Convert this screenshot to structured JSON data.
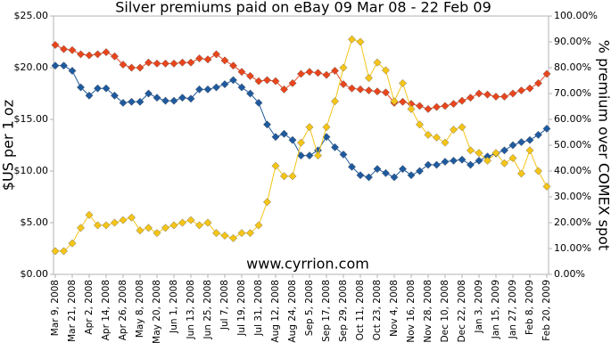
{
  "chart_data": {
    "type": "line",
    "title": "Silver premiums paid on eBay 09 Mar 08 - 22 Feb 09",
    "y_label": "$US per 1 oz",
    "y2_label": "% premium over COMEX spot",
    "annotation": "www.cyrrion.com",
    "categories": [
      "Mar 9, 2008",
      null,
      "Mar 21, 2008",
      null,
      "Apr 2, 2008",
      null,
      "Apr 14, 2008",
      null,
      "Apr 26, 2008",
      null,
      "May 8, 2008",
      null,
      "May 20, 2008",
      null,
      "Jun 1, 2008",
      null,
      "Jun 13, 2008",
      null,
      "Jun 25, 2008",
      null,
      "Jul 7, 2008",
      null,
      "Jul 19, 2008",
      null,
      "Jul 31, 2008",
      null,
      "Aug 12, 2008",
      null,
      "Aug 24, 2008",
      null,
      "Sep 5, 2008",
      null,
      "Sep 17, 2008",
      null,
      "Sep 29, 2008",
      null,
      "Oct 11, 2008",
      null,
      "Oct 23, 2008",
      null,
      "Nov 4, 2008",
      null,
      "Nov 16, 2008",
      null,
      "Nov 28, 2008",
      null,
      "Dec 10, 2008",
      null,
      "Dec 22, 2008",
      null,
      "Jan 3, 2009",
      null,
      "Jan 15, 2009",
      null,
      "Jan 27, 2009",
      null,
      "Feb 8, 2009",
      null,
      "Feb 20, 2009"
    ],
    "series": [
      {
        "color": "#e8451c",
        "values": [
          22.2,
          21.8,
          21.7,
          21.3,
          21.2,
          21.3,
          21.5,
          21.1,
          20.3,
          20.0,
          20.0,
          20.5,
          20.4,
          20.4,
          20.4,
          20.5,
          20.5,
          20.9,
          20.8,
          21.3,
          20.7,
          20.2,
          19.6,
          19.2,
          18.7,
          18.8,
          18.7,
          17.9,
          18.5,
          19.4,
          19.6,
          19.5,
          19.3,
          19.7,
          18.4,
          18.0,
          17.9,
          17.8,
          17.7,
          17.6,
          16.6,
          16.7,
          16.5,
          16.3,
          16.0,
          16.2,
          16.3,
          16.5,
          16.8,
          17.1,
          17.5,
          17.4,
          17.2,
          17.2,
          17.5,
          17.8,
          18.0,
          18.5,
          19.4
        ]
      },
      {
        "color": "#1f5a9e",
        "values": [
          20.2,
          20.2,
          19.7,
          18.1,
          17.3,
          18.0,
          18.0,
          17.3,
          16.6,
          16.7,
          16.7,
          17.5,
          17.1,
          16.8,
          16.8,
          17.1,
          17.0,
          17.9,
          17.9,
          18.1,
          18.4,
          18.8,
          18.1,
          17.5,
          16.6,
          14.5,
          13.3,
          13.6,
          13.0,
          11.5,
          11.5,
          12.0,
          13.3,
          12.3,
          11.6,
          10.4,
          9.6,
          9.4,
          10.2,
          9.8,
          9.4,
          10.2,
          9.6,
          10.0,
          10.6,
          10.6,
          10.9,
          11.0,
          11.1,
          10.6,
          11.0,
          11.4,
          11.7,
          12.0,
          12.5,
          12.8,
          13.0,
          13.5,
          14.1
        ]
      },
      {
        "color": "#f5c518",
        "axis": "y2",
        "values": [
          9,
          9,
          12,
          18,
          23,
          19,
          19,
          20,
          21,
          22,
          17,
          18,
          16,
          18,
          19,
          20,
          21,
          19,
          20,
          16,
          15,
          14,
          16,
          16,
          19,
          28,
          42,
          38,
          38,
          51,
          57,
          46,
          57,
          67,
          80,
          91,
          90,
          76,
          82,
          79,
          67,
          74,
          64,
          58,
          54,
          53,
          51,
          56,
          57,
          48,
          47,
          44,
          47,
          43,
          45,
          39,
          48,
          40,
          34
        ]
      }
    ],
    "ylim": [
      0,
      25
    ],
    "yticks": [
      {
        "value": 0,
        "label": "$0.00"
      },
      {
        "value": 5,
        "label": "$5.00"
      },
      {
        "value": 10,
        "label": "$10.00"
      },
      {
        "value": 15,
        "label": "$15.00"
      },
      {
        "value": 20,
        "label": "$20.00"
      },
      {
        "value": 25,
        "label": "$25.00"
      }
    ],
    "y2lim": [
      0,
      100
    ],
    "y2ticks": [
      {
        "value": 0,
        "label": "0.00%"
      },
      {
        "value": 10,
        "label": "10.00%"
      },
      {
        "value": 20,
        "label": "20.00%"
      },
      {
        "value": 30,
        "label": "30.00%"
      },
      {
        "value": 40,
        "label": "40.00%"
      },
      {
        "value": 50,
        "label": "50.00%"
      },
      {
        "value": 60,
        "label": "60.00%"
      },
      {
        "value": 70,
        "label": "70.00%"
      },
      {
        "value": 80,
        "label": "80.00%"
      },
      {
        "value": 90,
        "label": "90.00%"
      },
      {
        "value": 100,
        "label": "100.00%"
      }
    ]
  }
}
